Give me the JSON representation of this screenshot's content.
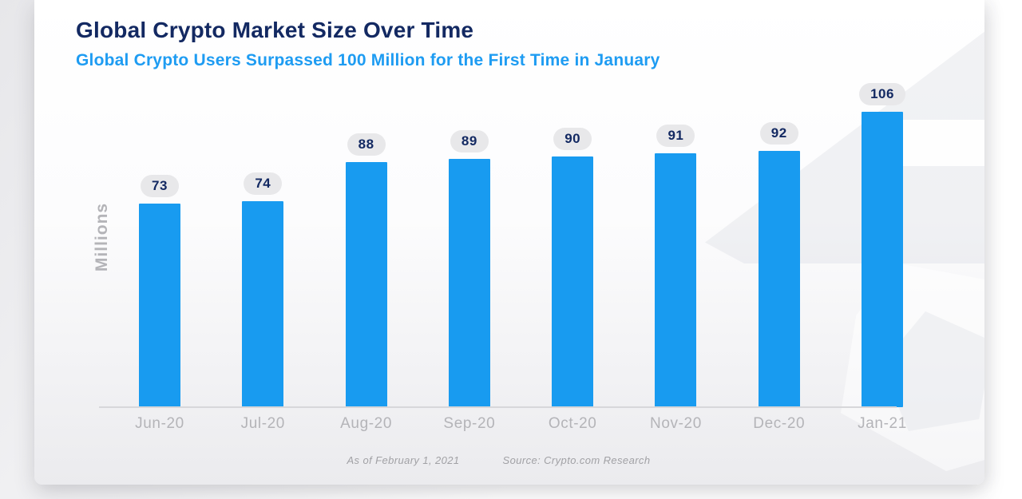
{
  "header": {
    "title": "Global Crypto Market Size Over Time",
    "subtitle": "Global Crypto Users Surpassed 100 Million for the First Time in January"
  },
  "chart_data": {
    "type": "bar",
    "categories": [
      "Jun-20",
      "Jul-20",
      "Aug-20",
      "Sep-20",
      "Oct-20",
      "Nov-20",
      "Dec-20",
      "Jan-21"
    ],
    "values": [
      73,
      74,
      88,
      89,
      90,
      91,
      92,
      106
    ],
    "title": "Global Crypto Market Size Over Time",
    "subtitle": "Global Crypto Users Surpassed 100 Million for the First Time in January",
    "xlabel": "",
    "ylabel": "Millions",
    "ylim": [
      0,
      110
    ],
    "grid": false,
    "legend": "none",
    "data_labels": [
      73,
      74,
      88,
      89,
      90,
      91,
      92,
      106
    ]
  },
  "footer": {
    "as_of": "As of February 1, 2021",
    "source": "Source: Crypto.com Research"
  },
  "colors": {
    "navy": "#13296275",
    "navy_text": "#132962",
    "blue": "#1e9cf2",
    "bar_blue": "#189bf0",
    "pill_bg": "#e8e8ea",
    "axis_gray": "#b4b4b8",
    "line_gray": "#d7d7da",
    "foot_gray": "#a1a1a5"
  }
}
